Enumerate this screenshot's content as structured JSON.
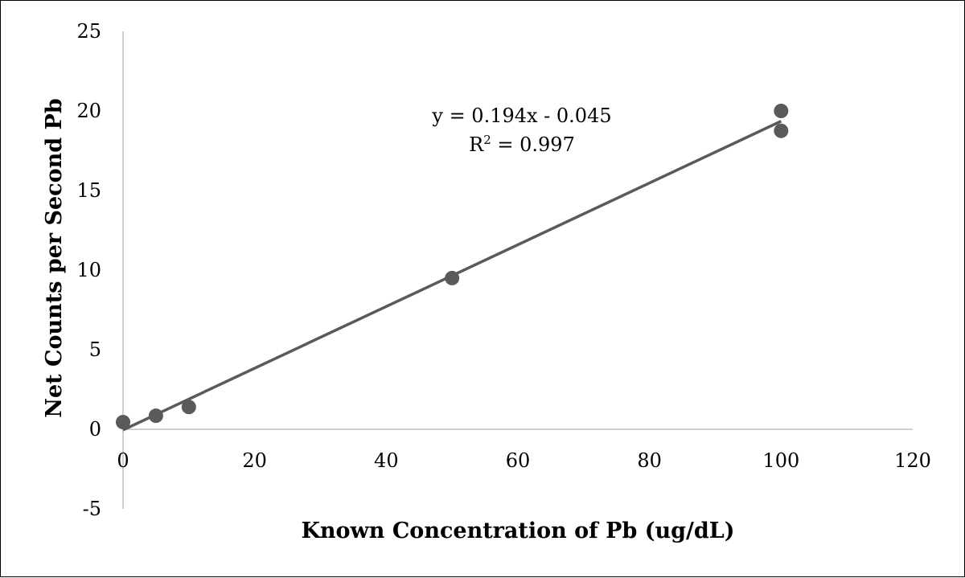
{
  "chart_data": {
    "type": "scatter",
    "xlabel": "Known Concentration of Pb (ug/dL)",
    "ylabel": "Net Counts per Second Pb",
    "xlim": [
      0,
      120
    ],
    "ylim": [
      -5,
      25
    ],
    "x_ticks": [
      "0",
      "20",
      "40",
      "60",
      "80",
      "100",
      "120"
    ],
    "y_ticks": [
      "-5",
      "0",
      "5",
      "10",
      "15",
      "20",
      "25"
    ],
    "grid": false,
    "legend": "none",
    "series": [
      {
        "points": [
          {
            "x": 0,
            "y": 0.45
          },
          {
            "x": 5,
            "y": 0.85
          },
          {
            "x": 10,
            "y": 1.4
          },
          {
            "x": 50,
            "y": 9.5
          },
          {
            "x": 100,
            "y": 20.0
          },
          {
            "x": 100,
            "y": 18.75
          }
        ],
        "color": "#5a5a5a"
      }
    ],
    "trendline": {
      "slope": 0.194,
      "intercept": -0.045,
      "x_range": [
        0,
        100
      ],
      "color": "#5a5a5a",
      "equation_label": "y = 0.194x - 0.045",
      "r2_prefix": "R",
      "r2_superscript": "2",
      "r2_suffix": " = 0.997"
    },
    "axis_color": "#bfbfbf"
  }
}
